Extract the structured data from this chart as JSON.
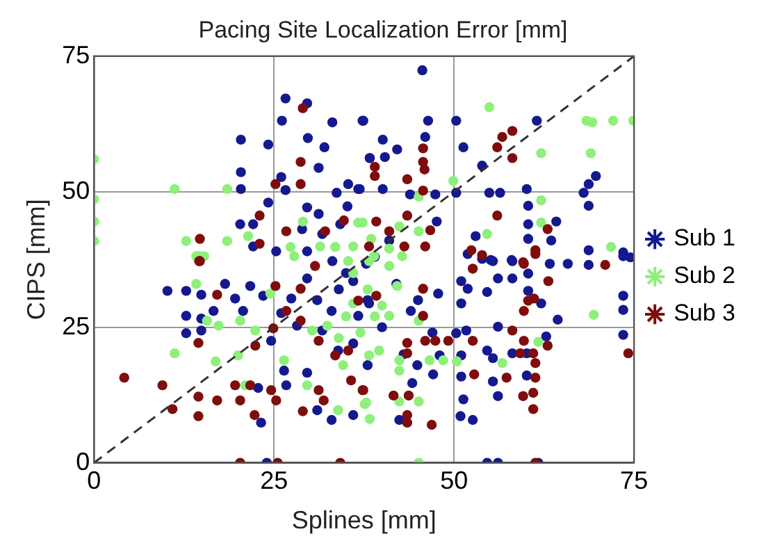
{
  "chart_data": {
    "type": "scatter",
    "title": "Pacing Site Localization Error [mm]",
    "xlabel": "Splines [mm]",
    "ylabel": "CIPS [mm]",
    "xlim": [
      0,
      75
    ],
    "ylim": [
      0,
      75
    ],
    "xticks": [
      0,
      25,
      50,
      75
    ],
    "yticks": [
      0,
      25,
      50,
      75
    ],
    "grid": true,
    "legend": "right",
    "marker": "circle",
    "series": [
      {
        "name": "Sub 1",
        "color": "#14198f",
        "x": [
          26.6,
          29.6,
          26.1,
          33.1,
          37.3,
          20.4,
          24.2,
          29.7,
          32,
          31.2,
          38.3,
          20.4,
          26,
          20.4,
          26.6,
          33.7,
          35.3,
          36.7,
          24.2,
          29.6,
          31.2,
          35.2,
          20.3,
          22.1,
          28.9,
          31.7,
          34.2,
          22.1,
          25.3,
          29.6,
          45.6,
          37.4,
          46.4,
          50.3,
          61.5,
          40.1,
          46,
          51.3,
          42.1,
          38.3,
          40.4,
          53.9,
          69.7,
          68.7,
          36.9,
          40.1,
          50.3,
          54.9,
          56.4,
          60.1,
          68,
          68.7,
          60.3,
          43.9,
          47.4,
          47.6,
          60.3,
          64.2,
          53,
          60.3,
          63.5,
          68.7,
          73.5,
          74.5,
          55.1,
          58,
          63.3,
          65.8,
          51.9,
          53.9,
          55.4,
          58.1,
          60.3,
          68.7,
          73.5,
          51,
          56.1,
          58.1,
          60.3,
          54.6,
          51.9,
          51,
          62.1,
          64.4,
          73.5,
          73.5,
          73.5,
          56.1,
          51.7,
          50.3,
          62.8,
          54.6,
          58.1,
          60.1,
          55.4,
          51,
          48,
          47.1,
          51,
          55.4,
          56.1,
          60.1,
          51.3,
          50.9,
          52.6,
          44.2,
          42.4,
          47.8,
          38.2,
          44.9,
          54.6,
          56.1,
          61.7,
          10.2,
          12.8,
          14.9,
          12.8,
          14.9,
          12.8,
          14.9,
          18.2,
          19.6,
          21.7,
          23.5,
          16.6,
          20.7,
          26,
          24.6,
          26.4,
          23.2,
          29.6,
          31,
          33,
          36,
          24,
          33.9,
          31.7,
          28.2,
          36.7,
          36,
          37.8,
          33.1,
          29.6,
          27.4,
          22.8,
          26.7,
          35,
          38,
          40,
          42,
          36,
          33,
          44,
          39,
          41,
          45,
          47,
          43,
          38,
          34,
          31
        ],
        "values": [
          67.2,
          66.3,
          63.1,
          62.8,
          63.1,
          59.6,
          58.7,
          59.9,
          58.2,
          54.4,
          56.2,
          53.6,
          52.7,
          50.5,
          50.3,
          49.8,
          51.4,
          50.5,
          48,
          47.1,
          45.9,
          47.3,
          44,
          44,
          43.1,
          42.2,
          44,
          39.9,
          39,
          39,
          72.4,
          63.1,
          63.1,
          63.1,
          63.1,
          59.6,
          60.1,
          58.2,
          57.8,
          56.2,
          56.4,
          54.8,
          52.9,
          51.4,
          50.5,
          50.5,
          49.8,
          49.8,
          49.8,
          50.5,
          49.8,
          47.4,
          47.4,
          49.5,
          49.5,
          44.5,
          44,
          44.5,
          41.8,
          41.3,
          41,
          39.2,
          38.8,
          37.9,
          37.4,
          37.4,
          36.7,
          36.7,
          38.5,
          37.6,
          37.2,
          37.2,
          34.9,
          36.5,
          38.1,
          33.5,
          34,
          34,
          31.7,
          31.5,
          32.1,
          29.4,
          29.4,
          26.4,
          30.8,
          28.2,
          23.6,
          25.1,
          24.4,
          23.9,
          23.3,
          20.7,
          20.2,
          20.2,
          19.3,
          19.8,
          19.8,
          16.3,
          15.9,
          15,
          12.3,
          16.1,
          11.7,
          8.6,
          7.9,
          14.7,
          7.9,
          31.2,
          29.4,
          18,
          0,
          0,
          0,
          31.7,
          31.7,
          31,
          27.1,
          26.6,
          23.9,
          24.4,
          33,
          30.3,
          32.6,
          30.8,
          28,
          28,
          27.6,
          22.5,
          17,
          7.4,
          16.6,
          9.7,
          7.9,
          8.8,
          0,
          20.7,
          24.4,
          25.3,
          27.1,
          33.5,
          36.7,
          37.2,
          34,
          30.3,
          13.8,
          14.3,
          35,
          30,
          25,
          33,
          22,
          28,
          28,
          38,
          41,
          30,
          24,
          20,
          18,
          32,
          30
        ]
      },
      {
        "name": "Sub 2",
        "color": "#8ef07a",
        "x": [
          0,
          0,
          0,
          0,
          11.2,
          18.5,
          18.5,
          12.8,
          14.2,
          15.3,
          29,
          21.4,
          27.3,
          31.4,
          33.5,
          36,
          36.7,
          54.9,
          68.4,
          69.2,
          72.1,
          74.9,
          62.1,
          69,
          49.9,
          62.1,
          62.1,
          54.6,
          45.1,
          71.8,
          37.3,
          42.4,
          45.1,
          38.5,
          41,
          38.9,
          69.4,
          61.7,
          56.7,
          50.4,
          48.5,
          46.6,
          45.1,
          42.4,
          38.3,
          37.6,
          39.6,
          45.1,
          42.4,
          42.4,
          38.2,
          41,
          42.1,
          38.2,
          41,
          45.1,
          42.8,
          14.6,
          11.2,
          16.9,
          14.2,
          15.7,
          17.3,
          20.3,
          22.4,
          20,
          21,
          24.5,
          30.3,
          26.4,
          29.6,
          33.9,
          35.3,
          36,
          37.8,
          32.4,
          34.6,
          27.8,
          36,
          38,
          39,
          37,
          40,
          35,
          34
        ],
        "values": [
          56,
          48.6,
          44.5,
          40.9,
          50.5,
          50.5,
          40.9,
          40.9,
          38.1,
          38.1,
          44.5,
          41.8,
          39.8,
          39.9,
          39.8,
          39.9,
          44.3,
          65.6,
          63.1,
          62.8,
          63.1,
          63.1,
          57.1,
          57.1,
          52,
          48.4,
          44.3,
          42.2,
          49.1,
          39.8,
          44.3,
          43.6,
          42.7,
          41.3,
          39.5,
          38.1,
          27.3,
          22.3,
          18.4,
          18.7,
          18.9,
          18.9,
          11.3,
          11.3,
          8.1,
          10.8,
          20.7,
          26.2,
          18.9,
          17,
          19.8,
          27.1,
          32.6,
          37.2,
          36.3,
          0,
          38.1,
          38.1,
          20.2,
          18.7,
          33,
          26.2,
          25.3,
          26.2,
          24.4,
          19.8,
          14.3,
          31.2,
          24.4,
          18.9,
          14.3,
          9.7,
          37.2,
          29.4,
          11.1,
          25.3,
          18,
          38.1,
          35,
          32,
          27,
          24,
          29,
          27,
          23
        ]
      },
      {
        "name": "Sub 3",
        "color": "#7f0d0d",
        "x": [
          29,
          28.7,
          28.7,
          25.2,
          23,
          26.7,
          32.1,
          34.7,
          14.7,
          23,
          14.7,
          58.1,
          56.7,
          56,
          58.1,
          45.7,
          39,
          39,
          45.7,
          45.9,
          43.5,
          45.7,
          56,
          63,
          61.3,
          52.4,
          53.9,
          59.6,
          71,
          38.2,
          43.1,
          46,
          46.7,
          39.2,
          41,
          43.5,
          52.6,
          59.7,
          61.3,
          63.1,
          60.3,
          61.1,
          59.7,
          58.1,
          52.6,
          63,
          59.7,
          59.2,
          61,
          61.3,
          61.3,
          61,
          59.6,
          61,
          57.3,
          52.8,
          74.2,
          61.3,
          46.9,
          43.5,
          43.5,
          41.6,
          43.7,
          47.4,
          46,
          49.2,
          45.7,
          45.7,
          43.5,
          43.5,
          39.2,
          37.4,
          4.2,
          9.5,
          10.9,
          14.5,
          14.5,
          17.1,
          14.5,
          17.1,
          19.6,
          20.3,
          21.7,
          22.3,
          24.6,
          25.3,
          22.4,
          24.9,
          25.2,
          29,
          28.7,
          28.7,
          31.2,
          31.2,
          31.9,
          33.5,
          35.3,
          35.7,
          37.3,
          26.7,
          20.3,
          25.5,
          34.2,
          14.6,
          30.7,
          36.7
        ],
        "values": [
          65.4,
          55.5,
          51.4,
          51.4,
          45.6,
          42.7,
          42.7,
          44.7,
          41.3,
          40.4,
          37.2,
          61.2,
          60.1,
          58.2,
          56.2,
          58,
          54.6,
          52.9,
          55.5,
          54.1,
          52.3,
          50.2,
          45.6,
          43.1,
          39.2,
          39.2,
          38.3,
          37,
          36.5,
          39.9,
          39.9,
          39.9,
          42.9,
          44.5,
          42.7,
          45.6,
          35.8,
          36.7,
          38.5,
          33.5,
          29.9,
          30.3,
          28,
          24.4,
          22.5,
          21.6,
          22.5,
          20.2,
          20.2,
          18.4,
          15.7,
          12.9,
          12.3,
          9.9,
          15.7,
          16.3,
          20.2,
          0,
          7,
          7.4,
          8.8,
          12.4,
          12.4,
          22.5,
          22.5,
          22.5,
          32.1,
          27.1,
          20.2,
          22.1,
          30.8,
          13.4,
          15.7,
          14.3,
          9.9,
          12.2,
          8.6,
          11.5,
          22.1,
          31,
          14.3,
          11.5,
          14.3,
          8.8,
          13.4,
          11.5,
          21.6,
          24.8,
          32.6,
          9.5,
          32.1,
          26.2,
          22.5,
          13.4,
          11.5,
          19.8,
          20.7,
          15.2,
          13.4,
          28,
          0,
          0,
          0,
          37.2,
          36.3,
          29.9
        ]
      },
      {
        "type": "line",
        "color": "#333333",
        "line_style": "dashed",
        "marker": "none",
        "x": [
          0,
          75
        ],
        "values": [
          0,
          75
        ]
      }
    ]
  }
}
